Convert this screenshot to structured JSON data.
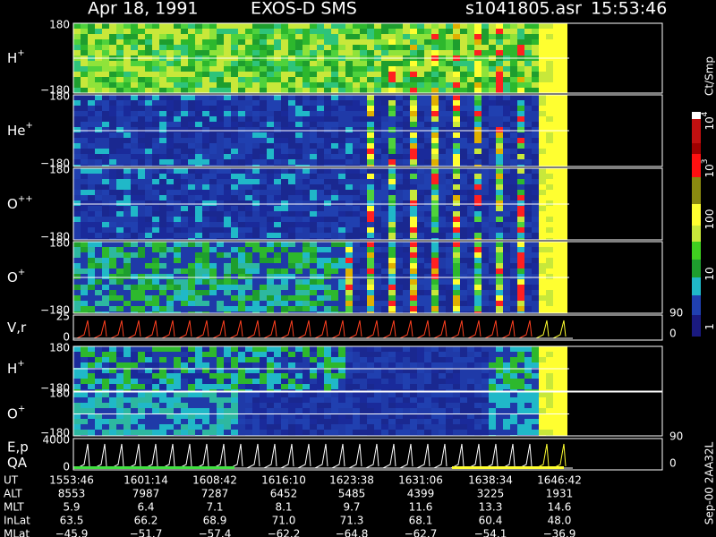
{
  "header": {
    "date": "Apr 18, 1991",
    "instrument": "EXOS-D SMS",
    "file": "s1041805.asr",
    "time": "15:53:46"
  },
  "panels": [
    {
      "label": {
        "base": "H",
        "sup": "+"
      },
      "top": "180",
      "bottom": "−180"
    },
    {
      "label": {
        "base": "He",
        "sup": "+"
      },
      "top": "180",
      "bottom": "−180"
    },
    {
      "label": {
        "base": "O",
        "sup": "++"
      },
      "top": "180",
      "bottom": "−180"
    },
    {
      "label": {
        "base": "O",
        "sup": "+"
      },
      "top": "180",
      "bottom": "−180"
    },
    {
      "label": {
        "base": "V,r"
      },
      "top": "25",
      "bottom": "0",
      "right_top": "90",
      "right_bottom": "0"
    },
    {
      "label": {
        "base": "H",
        "sup": "+"
      },
      "top": "180",
      "bottom": "−180"
    },
    {
      "label": {
        "base": "O",
        "sup": "+"
      },
      "top": "180",
      "bottom": "−180"
    },
    {
      "label": {
        "base": "E,p"
      },
      "label2": "QA",
      "top": "4000",
      "bottom": "0",
      "right_top": "90",
      "right_bottom": "0"
    }
  ],
  "colorbar": {
    "unit": "Ct/Smp",
    "labels": [
      {
        "base": "10",
        "sup": "4"
      },
      {
        "base": "10",
        "sup": "3"
      },
      {
        "base": "100"
      },
      {
        "base": "10"
      },
      {
        "base": "1"
      }
    ]
  },
  "footer": {
    "labels": [
      "UT",
      "ALT",
      "MLT",
      "InLat",
      "MLat"
    ],
    "rows": [
      [
        "1553:46",
        "1601:14",
        "1608:42",
        "1616:10",
        "1623:38",
        "1631:06",
        "1638:34",
        "1646:42"
      ],
      [
        "8553",
        "7987",
        "7287",
        "6452",
        "5485",
        "4399",
        "3225",
        "1931"
      ],
      [
        "5.9",
        "6.4",
        "7.1",
        "8.1",
        "9.7",
        "11.6",
        "13.3",
        "14.6"
      ],
      [
        "63.5",
        "66.2",
        "68.9",
        "71.0",
        "71.3",
        "68.1",
        "60.4",
        "48.0"
      ],
      [
        "−45.9",
        "−51.7",
        "−57.4",
        "−62.2",
        "−64.8",
        "−62.7",
        "−54.1",
        "−36.9"
      ]
    ]
  },
  "stamp": "Sep-00 2AA32L"
}
